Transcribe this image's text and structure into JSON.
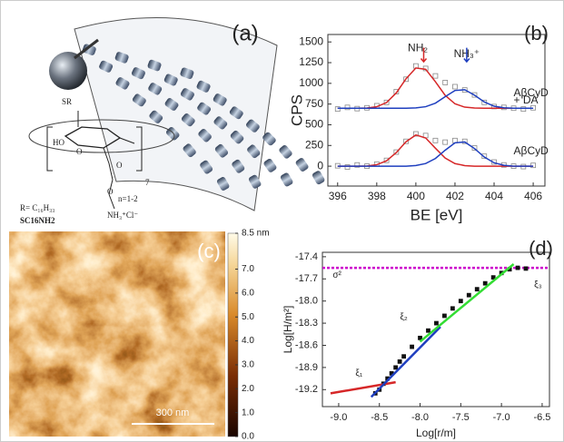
{
  "panel_a": {
    "panel_label": "(a)",
    "structure_labels": [
      "SR",
      "HO",
      "O",
      "O",
      "O",
      "7",
      "n=1-2",
      "R= C₁₆H₃₃",
      "SC16NH2",
      "NH₃⁺Cl⁻"
    ]
  },
  "panel_c": {
    "panel_label": "(c)",
    "scale_bar": "300 nm",
    "colorbar_ticks": [
      {
        "value": 8.5,
        "label": "8.5 nm"
      },
      {
        "value": 7,
        "label": "7.0"
      },
      {
        "value": 6,
        "label": "6.0"
      },
      {
        "value": 5,
        "label": "5.0"
      },
      {
        "value": 4,
        "label": "4.0"
      },
      {
        "value": 3,
        "label": "3.0"
      },
      {
        "value": 2,
        "label": "2.0"
      },
      {
        "value": 1,
        "label": "1.0"
      },
      {
        "value": 0,
        "label": "0.0"
      }
    ]
  },
  "chart_data": [
    {
      "type": "scatter",
      "panel_label": "(b)",
      "x_label": "BE [eV]",
      "y_label": "CPS",
      "annotations": [
        "NH₂",
        "NH₃⁺",
        "AβCyD",
        "+ DA",
        "AβCyD"
      ],
      "xlim": [
        395.5,
        406.6
      ],
      "xticks": [
        396,
        398,
        400,
        402,
        404,
        406
      ],
      "ylim": [
        -240,
        1590
      ],
      "yticks": [
        0,
        250,
        500,
        750,
        1000,
        1250,
        1500
      ],
      "series": [
        {
          "mode": "markers",
          "color": "#888888",
          "x": [
            396,
            396.5,
            397,
            397.5,
            398,
            398.5,
            399,
            399.5,
            400,
            400.5,
            401,
            401.5,
            402,
            402.5,
            403,
            403.5,
            404,
            404.5,
            405,
            405.5,
            406
          ],
          "values": [
            690,
            710,
            695,
            705,
            730,
            770,
            900,
            1050,
            1210,
            1180,
            1090,
            1010,
            960,
            920,
            860,
            770,
            720,
            710,
            700,
            690,
            705
          ]
        },
        {
          "mode": "line",
          "color": "#d62728",
          "x": [
            396,
            396.5,
            397,
            397.5,
            398,
            398.5,
            399,
            399.5,
            400,
            400.5,
            401,
            401.5,
            402,
            402.5,
            403,
            403.5,
            404,
            404.5,
            405,
            405.5,
            406
          ],
          "values": [
            700,
            700,
            700,
            703,
            718,
            768,
            885,
            1056,
            1186,
            1170,
            1020,
            855,
            753,
            713,
            702,
            700,
            700,
            700,
            700,
            700,
            700
          ]
        },
        {
          "mode": "line",
          "color": "#1f3fbf",
          "x": [
            396,
            396.5,
            397,
            397.5,
            398,
            398.5,
            399,
            399.5,
            400,
            400.5,
            401,
            401.5,
            402,
            402.5,
            403,
            403.5,
            404,
            404.5,
            405,
            405.5,
            406
          ],
          "values": [
            700,
            700,
            700,
            700,
            700,
            700,
            700,
            700,
            704,
            718,
            761,
            840,
            914,
            923,
            857,
            775,
            724,
            705,
            700,
            700,
            700
          ]
        },
        {
          "mode": "markers",
          "color": "#888888",
          "x": [
            396,
            396.5,
            397,
            397.5,
            398,
            398.5,
            399,
            399.5,
            400,
            400.5,
            401,
            401.5,
            402,
            402.5,
            403,
            403.5,
            404,
            404.5,
            405,
            405.5,
            406
          ],
          "values": [
            5,
            -10,
            15,
            0,
            25,
            70,
            170,
            300,
            390,
            370,
            310,
            290,
            310,
            300,
            220,
            120,
            50,
            15,
            0,
            -5,
            10
          ]
        },
        {
          "mode": "line",
          "color": "#d62728",
          "x": [
            396,
            396.5,
            397,
            397.5,
            398,
            398.5,
            399,
            399.5,
            400,
            400.5,
            401,
            401.5,
            402,
            402.5,
            403,
            403.5,
            404,
            404.5,
            405,
            405.5,
            406
          ],
          "values": [
            0,
            0,
            0,
            2,
            18,
            65,
            164,
            296,
            377,
            341,
            217,
            98,
            31,
            7,
            0,
            0,
            0,
            0,
            0,
            0,
            0
          ]
        },
        {
          "mode": "line",
          "color": "#1f3fbf",
          "x": [
            396,
            396.5,
            397,
            397.5,
            398,
            398.5,
            399,
            399.5,
            400,
            400.5,
            401,
            401.5,
            402,
            402.5,
            403,
            403.5,
            404,
            404.5,
            405,
            405.5,
            406
          ],
          "values": [
            0,
            0,
            0,
            0,
            0,
            0,
            0,
            0,
            8,
            32,
            93,
            193,
            282,
            292,
            213,
            110,
            41,
            11,
            0,
            0,
            0
          ]
        }
      ]
    },
    {
      "type": "scatter",
      "panel_label": "(d)",
      "x_label": "Log[r/m]",
      "y_label": "Log[H/m²]",
      "annotations": [
        "σ²",
        "ξ₁",
        "ξ₂",
        "ξ₃"
      ],
      "xlim": [
        -9.2,
        -6.41
      ],
      "xticks": [
        {
          "value": -9,
          "label": "-9.0"
        },
        -8.5,
        {
          "value": -8,
          "label": "-8.0"
        },
        -7.5,
        {
          "value": -7,
          "label": "-7.0"
        },
        -6.5
      ],
      "ylim": [
        -19.43,
        -17.34
      ],
      "yticks": [
        -17.4,
        -17.7,
        {
          "value": -18,
          "label": "-18.0"
        },
        -18.3,
        -18.6,
        -18.9,
        -19.2
      ],
      "series": [
        {
          "mode": "line",
          "color": "#cc00cc",
          "dash": true,
          "x": [
            -9.2,
            -6.41
          ],
          "values": [
            -17.55,
            -17.55
          ]
        },
        {
          "mode": "markers",
          "color": "#111111",
          "x": [
            -8.55,
            -8.5,
            -8.45,
            -8.4,
            -8.35,
            -8.3,
            -8.25,
            -8.2,
            -8.1,
            -8,
            -7.9,
            -7.8,
            -7.7,
            -7.6,
            -7.5,
            -7.4,
            -7.3,
            -7.2,
            -7.1,
            -7,
            -6.9,
            -6.8,
            -6.7
          ],
          "values": [
            -19.25,
            -19.2,
            -19.12,
            -19.05,
            -18.98,
            -18.9,
            -18.82,
            -18.75,
            -18.62,
            -18.5,
            -18.4,
            -18.3,
            -18.2,
            -18.1,
            -18,
            -17.92,
            -17.84,
            -17.76,
            -17.68,
            -17.62,
            -17.57,
            -17.55,
            -17.56
          ]
        },
        {
          "mode": "line",
          "color": "#d62728",
          "x": [
            -9.1,
            -8.3
          ],
          "values": [
            -19.25,
            -19.1
          ]
        },
        {
          "mode": "line",
          "color": "#1f3fbf",
          "x": [
            -8.6,
            -7.75
          ],
          "values": [
            -19.3,
            -18.35
          ]
        },
        {
          "mode": "line",
          "color": "#33dd33",
          "x": [
            -8,
            -6.85
          ],
          "values": [
            -18.55,
            -17.5
          ]
        }
      ]
    }
  ]
}
